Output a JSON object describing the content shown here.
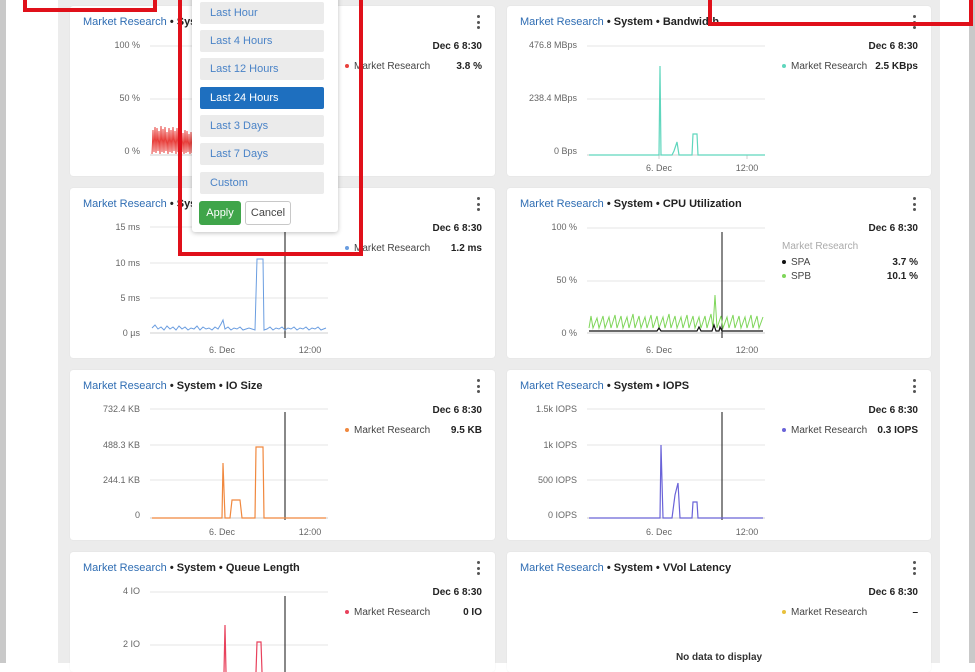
{
  "colors": {
    "link": "#2f6db3",
    "latency": "#e8413d",
    "bandwidth": "#5fd6bd",
    "response": "#6a9de0",
    "spa": "#111111",
    "spb": "#7fd65a",
    "io_size": "#f0883e",
    "iops": "#6a63d8",
    "queue": "#e8415c",
    "vvol": "#e8c13d",
    "selected": "#1e6fbf",
    "apply": "#3fa54a",
    "highlight": "#e0101a"
  },
  "dropdown": {
    "options": [
      "Last Hour",
      "Last 4 Hours",
      "Last 12 Hours",
      "Last 24 Hours",
      "Last 3 Days",
      "Last 7 Days",
      "Custom"
    ],
    "selected": "Last 24 Hours",
    "apply_label": "Apply",
    "cancel_label": "Cancel"
  },
  "cards": [
    {
      "id": "utilization",
      "title_link": "Market Research",
      "title_rest": " • Syst",
      "time": "Dec 6 8:30",
      "legend": [
        {
          "name": "Market Research",
          "value": "3.8 %",
          "color": "#e8413d"
        }
      ],
      "y_ticks": [
        "100 %",
        "50 %",
        "0 %"
      ],
      "x_ticks": []
    },
    {
      "id": "bandwidth",
      "title_link": "Market Research",
      "title_rest": " • System • Bandwidth",
      "time": "Dec 6 8:30",
      "legend": [
        {
          "name": "Market Research",
          "value": "2.5 KBps",
          "color": "#5fd6bd"
        }
      ],
      "y_ticks": [
        "476.8 MBps",
        "238.4 MBps",
        "0 Bps"
      ],
      "x_ticks": [
        "6. Dec",
        "12:00"
      ]
    },
    {
      "id": "response",
      "title_link": "Market Research",
      "title_rest": " • Syst",
      "time": "Dec 6 8:30",
      "legend": [
        {
          "name": "Market Research",
          "value": "1.2 ms",
          "color": "#6a9de0"
        }
      ],
      "y_ticks": [
        "15 ms",
        "10 ms",
        "5 ms",
        "0 µs"
      ],
      "x_ticks": [
        "6. Dec",
        "12:00"
      ]
    },
    {
      "id": "cpu",
      "title_link": "Market Research",
      "title_rest": " • System • CPU Utilization",
      "time": "Dec 6 8:30",
      "legend_group": "Market Research",
      "legend": [
        {
          "name": "SPA",
          "value": "3.7 %",
          "color": "#111111"
        },
        {
          "name": "SPB",
          "value": "10.1 %",
          "color": "#7fd65a"
        }
      ],
      "y_ticks": [
        "100 %",
        "50 %",
        "0 %"
      ],
      "x_ticks": [
        "6. Dec",
        "12:00"
      ]
    },
    {
      "id": "iosize",
      "title_link": "Market Research",
      "title_rest": " • System • IO Size",
      "time": "Dec 6 8:30",
      "legend": [
        {
          "name": "Market Research",
          "value": "9.5 KB",
          "color": "#f0883e"
        }
      ],
      "y_ticks": [
        "732.4 KB",
        "488.3 KB",
        "244.1 KB",
        "0"
      ],
      "x_ticks": [
        "6. Dec",
        "12:00"
      ]
    },
    {
      "id": "iops",
      "title_link": "Market Research",
      "title_rest": " • System • IOPS",
      "time": "Dec 6 8:30",
      "legend": [
        {
          "name": "Market Research",
          "value": "0.3 IOPS",
          "color": "#6a63d8"
        }
      ],
      "y_ticks": [
        "1.5k IOPS",
        "1k IOPS",
        "500 IOPS",
        "0 IOPS"
      ],
      "x_ticks": [
        "6. Dec",
        "12:00"
      ]
    },
    {
      "id": "queue",
      "title_link": "Market Research",
      "title_rest": " • System • Queue Length",
      "time": "Dec 6 8:30",
      "legend": [
        {
          "name": "Market Research",
          "value": "0 IO",
          "color": "#e8415c"
        }
      ],
      "y_ticks": [
        "4 IO",
        "2 IO"
      ],
      "x_ticks": []
    },
    {
      "id": "vvol",
      "title_link": "Market Research",
      "title_rest": " • System • VVol Latency",
      "time": "Dec 6 8:30",
      "legend": [
        {
          "name": "Market Research",
          "value": "–",
          "color": "#e8c13d"
        }
      ],
      "no_data": "No data to display",
      "y_ticks": [],
      "x_ticks": []
    }
  ]
}
